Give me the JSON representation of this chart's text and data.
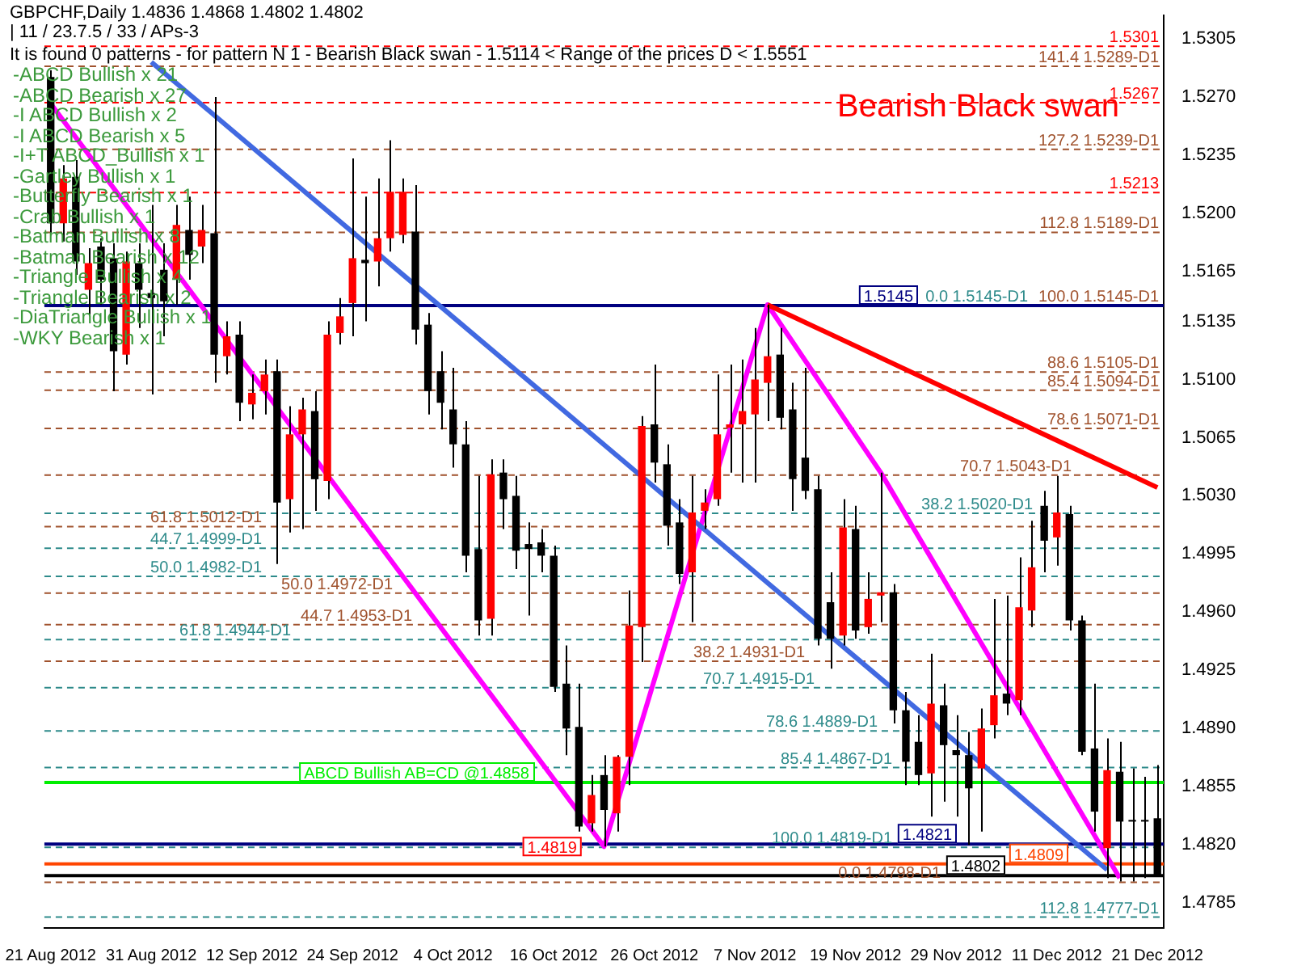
{
  "chart_data": {
    "type": "candlestick",
    "title": "GBPCHF,Daily  1.4836 1.4868 1.4802 1.4802",
    "subtitle": "| 11 / 23.7.5 / 33 / APs-3",
    "annotations": [
      "It is found 0 patterns  - for pattern N 1 - Bearish Black swan  - 1.5114 < Range of the prices D < 1.5551",
      "-ABCD Bullish x 21",
      "-ABCD Bearish x 27",
      "-I ABCD Bullish x 2",
      "-I ABCD Bearish x 5",
      "-I+T ABCD_Bullish x 1",
      "-Gartley Bullish x 1",
      "-Butterfly Bearish x 1",
      "-Crab Bullish x 1",
      "-Batman Bullish x 8",
      "-Batman Bearish x 12",
      "-Triangle Bullish x 4",
      "-Triangle Bearish x 2",
      "-DiaTriangle Bullish x 1",
      "-WKY Bearish x 1",
      {
        "text": "1.4819",
        "y": 1.4819
      },
      "Bearish Black swan"
    ],
    "categories": [
      "21 Aug 2012",
      null,
      null,
      null,
      null,
      null,
      null,
      null,
      "31 Aug 2012",
      null,
      null,
      null,
      null,
      null,
      null,
      null,
      "12 Sep 2012",
      null,
      null,
      null,
      null,
      null,
      null,
      null,
      "24 Sep 2012",
      null,
      null,
      null,
      null,
      null,
      null,
      null,
      "4 Oct 2012",
      null,
      null,
      null,
      null,
      null,
      null,
      null,
      "16 Oct 2012",
      null,
      null,
      null,
      null,
      null,
      null,
      null,
      "26 Oct 2012",
      null,
      null,
      null,
      null,
      null,
      null,
      null,
      "7 Nov 2012",
      null,
      null,
      null,
      null,
      null,
      null,
      null,
      "19 Nov 2012",
      null,
      null,
      null,
      null,
      null,
      null,
      null,
      "29 Nov 2012",
      null,
      null,
      null,
      null,
      null,
      null,
      null,
      "11 Dec 2012",
      null,
      null,
      null,
      null,
      null,
      null,
      null,
      "21 Dec 2012"
    ],
    "ohlc": [
      [
        1.5282,
        1.5286,
        1.5188,
        1.5194
      ],
      [
        1.5194,
        1.5229,
        1.5183,
        1.5221
      ],
      [
        1.5222,
        1.5232,
        1.5163,
        1.5171
      ],
      [
        1.5154,
        1.5179,
        1.5138,
        1.517
      ],
      [
        1.518,
        1.5185,
        1.5145,
        1.516
      ],
      [
        1.5173,
        1.5182,
        1.5093,
        1.5117
      ],
      [
        1.5115,
        1.5177,
        1.5109,
        1.5171
      ],
      [
        1.517,
        1.5182,
        1.5131,
        1.5154
      ],
      [
        1.5152,
        1.5205,
        1.5091,
        1.5149
      ],
      [
        1.5166,
        1.5182,
        1.5126,
        1.5147
      ],
      [
        1.516,
        1.5205,
        1.5145,
        1.5193
      ],
      [
        1.519,
        1.521,
        1.516,
        1.5175
      ],
      [
        1.518,
        1.5205,
        1.517,
        1.519
      ],
      [
        1.5188,
        1.527,
        1.5098,
        1.5115
      ],
      [
        1.5114,
        1.5135,
        1.5103,
        1.5126
      ],
      [
        1.5127,
        1.5135,
        1.5075,
        1.5086
      ],
      [
        1.5085,
        1.5103,
        1.5076,
        1.5092
      ],
      [
        1.5093,
        1.5112,
        1.5079,
        1.5103
      ],
      [
        1.5105,
        1.5112,
        1.4989,
        1.5026
      ],
      [
        1.5028,
        1.5084,
        1.5008,
        1.5067
      ],
      [
        1.5067,
        1.5089,
        1.501,
        1.5082
      ],
      [
        1.5081,
        1.5093,
        1.5021,
        1.504
      ],
      [
        1.5039,
        1.5135,
        1.5028,
        1.5127
      ],
      [
        1.5128,
        1.5149,
        1.5121,
        1.5138
      ],
      [
        1.5146,
        1.5233,
        1.5126,
        1.5173
      ],
      [
        1.5172,
        1.521,
        1.5135,
        1.517
      ],
      [
        1.5171,
        1.5221,
        1.5156,
        1.5185
      ],
      [
        1.5185,
        1.5244,
        1.5177,
        1.5213
      ],
      [
        1.5187,
        1.5221,
        1.5182,
        1.5213
      ],
      [
        1.5189,
        1.5217,
        1.5121,
        1.513
      ],
      [
        1.5133,
        1.514,
        1.5079,
        1.5093
      ],
      [
        1.5105,
        1.5117,
        1.507,
        1.5086
      ],
      [
        1.5082,
        1.5107,
        1.5047,
        1.5061
      ],
      [
        1.5061,
        1.5075,
        1.4984,
        1.4994
      ],
      [
        1.4998,
        1.5042,
        1.4946,
        1.4955
      ],
      [
        1.4956,
        1.5052,
        1.4946,
        1.5043
      ],
      [
        1.5044,
        1.5052,
        1.501,
        1.5028
      ],
      [
        1.503,
        1.5042,
        1.4986,
        1.4997
      ],
      [
        1.5001,
        1.5014,
        1.4958,
        1.4998
      ],
      [
        1.5002,
        1.501,
        1.4984,
        1.4994
      ],
      [
        1.4994,
        1.5,
        1.4912,
        1.4915
      ],
      [
        1.4917,
        1.494,
        1.4874,
        1.489
      ],
      [
        1.4891,
        1.4917,
        1.4828,
        1.4831
      ],
      [
        1.4833,
        1.4862,
        1.4828,
        1.485
      ],
      [
        1.4862,
        1.4874,
        1.4819,
        1.4841
      ],
      [
        1.4839,
        1.4874,
        1.4828,
        1.4873
      ],
      [
        1.4873,
        1.4973,
        1.4856,
        1.4952
      ],
      [
        1.4951,
        1.5078,
        1.493,
        1.5072
      ],
      [
        1.5073,
        1.5109,
        1.5038,
        1.505
      ],
      [
        1.5049,
        1.5061,
        1.5,
        1.5012
      ],
      [
        1.5014,
        1.5028,
        1.4977,
        1.4983
      ],
      [
        1.4984,
        1.5042,
        1.4954,
        1.502
      ],
      [
        1.5021,
        1.5034,
        1.501,
        1.5026
      ],
      [
        1.5028,
        1.5103,
        1.5024,
        1.5067
      ],
      [
        1.5071,
        1.5109,
        1.5044,
        1.5073
      ],
      [
        1.5073,
        1.5112,
        1.5038,
        1.5081
      ],
      [
        1.5079,
        1.5131,
        1.5038,
        1.51
      ],
      [
        1.5098,
        1.5145,
        1.5075,
        1.5114
      ],
      [
        1.5115,
        1.5131,
        1.507,
        1.5077
      ],
      [
        1.5082,
        1.5098,
        1.5021,
        1.504
      ],
      [
        1.5053,
        1.5107,
        1.5028,
        1.5033
      ],
      [
        1.5034,
        1.5042,
        1.494,
        1.4944
      ],
      [
        1.4966,
        1.4984,
        1.4926,
        1.4944
      ],
      [
        1.4946,
        1.5028,
        1.494,
        1.5011
      ],
      [
        1.501,
        1.5024,
        1.4944,
        1.4949
      ],
      [
        1.4951,
        1.4984,
        1.4947,
        1.4968
      ],
      [
        1.497,
        1.5044,
        1.4954,
        1.4972
      ],
      [
        1.4972,
        1.4977,
        1.4893,
        1.4901
      ],
      [
        1.4901,
        1.4912,
        1.4856,
        1.487
      ],
      [
        1.4882,
        1.4898,
        1.4856,
        1.4862
      ],
      [
        1.4863,
        1.4935,
        1.4837,
        1.4905
      ],
      [
        1.4904,
        1.4917,
        1.4846,
        1.488
      ],
      [
        1.4877,
        1.4898,
        1.4837,
        1.4874
      ],
      [
        1.4874,
        1.4888,
        1.482,
        1.4854
      ],
      [
        1.4866,
        1.4902,
        1.4828,
        1.489
      ],
      [
        1.4892,
        1.4968,
        1.4884,
        1.491
      ],
      [
        1.4911,
        1.497,
        1.4898,
        1.4905
      ],
      [
        1.4907,
        1.4993,
        1.4898,
        1.4963
      ],
      [
        1.4961,
        1.5015,
        1.4951,
        1.4987
      ],
      [
        1.5024,
        1.5033,
        1.4984,
        1.5003
      ],
      [
        1.5005,
        1.5042,
        1.4988,
        1.502
      ],
      [
        1.5019,
        1.5024,
        1.4949,
        1.4955
      ],
      [
        1.4955,
        1.4958,
        1.4874,
        1.4876
      ],
      [
        1.4878,
        1.4917,
        1.4828,
        1.484
      ],
      [
        1.4818,
        1.4884,
        1.48,
        1.4865
      ],
      [
        1.4864,
        1.4882,
        1.4798,
        1.4834
      ],
      [
        1.4835,
        1.4866,
        1.4798,
        1.4834
      ],
      [
        1.4835,
        1.4861,
        1.48,
        1.4834
      ],
      [
        1.4836,
        1.4868,
        1.4802,
        1.4802
      ]
    ],
    "colors": [
      "#000000",
      "#ff0000",
      "#000000",
      "#ff0000",
      "#000000",
      "#000000",
      "#ff0000",
      "#000000",
      "#000000",
      "#000000",
      "#ff0000",
      "#000000",
      "#ff0000",
      "#000000",
      "#ff0000",
      "#000000",
      "#ff0000",
      "#ff0000",
      "#000000",
      "#ff0000",
      "#ff0000",
      "#000000",
      "#ff0000",
      "#ff0000",
      "#ff0000",
      "#000000",
      "#ff0000",
      "#ff0000",
      "#ff0000",
      "#000000",
      "#000000",
      "#000000",
      "#000000",
      "#000000",
      "#000000",
      "#ff0000",
      "#000000",
      "#000000",
      "#000000",
      "#000000",
      "#000000",
      "#000000",
      "#000000",
      "#ff0000",
      "#000000",
      "#ff0000",
      "#ff0000",
      "#ff0000",
      "#000000",
      "#000000",
      "#000000",
      "#ff0000",
      "#ff0000",
      "#ff0000",
      "#ff0000",
      "#ff0000",
      "#ff0000",
      "#ff0000",
      "#000000",
      "#000000",
      "#000000",
      "#000000",
      "#000000",
      "#ff0000",
      "#000000",
      "#ff0000",
      "#ff0000",
      "#000000",
      "#000000",
      "#000000",
      "#ff0000",
      "#000000",
      "#000000",
      "#000000",
      "#ff0000",
      "#ff0000",
      "#000000",
      "#ff0000",
      "#ff0000",
      "#000000",
      "#ff0000",
      "#000000",
      "#000000",
      "#000000",
      "#ff0000",
      "#000000",
      "#000000",
      "#000000",
      "#000000"
    ],
    "series": [
      {
        "type": "line",
        "color": "#4169e1",
        "values": [
          null,
          null,
          null,
          null,
          null,
          null,
          null,
          null,
          1.5291,
          null,
          null,
          null,
          null,
          null,
          null,
          null,
          null,
          null,
          null,
          null,
          null,
          null,
          null,
          null,
          null,
          null,
          null,
          null,
          null,
          null,
          null,
          null,
          null,
          null,
          null,
          null,
          null,
          null,
          null,
          null,
          null,
          null,
          null,
          null,
          null,
          null,
          null,
          null,
          null,
          null,
          null,
          null,
          null,
          null,
          null,
          null,
          null,
          null,
          null,
          null,
          null,
          null,
          null,
          null,
          null,
          null,
          null,
          null,
          null,
          null,
          null,
          null,
          null,
          null,
          null,
          null,
          null,
          null,
          null,
          null,
          null,
          null,
          null,
          null,
          1.4805,
          null,
          null,
          null,
          null
        ]
      },
      {
        "type": "line",
        "color": "#ff0000",
        "values": [
          null,
          null,
          null,
          null,
          null,
          null,
          null,
          null,
          null,
          null,
          null,
          null,
          null,
          null,
          null,
          null,
          null,
          null,
          null,
          null,
          null,
          null,
          null,
          null,
          null,
          null,
          null,
          null,
          null,
          null,
          null,
          null,
          null,
          null,
          null,
          null,
          null,
          null,
          null,
          null,
          null,
          null,
          null,
          null,
          null,
          null,
          null,
          null,
          null,
          null,
          null,
          null,
          null,
          null,
          null,
          null,
          null,
          1.5145,
          null,
          null,
          null,
          null,
          null,
          null,
          null,
          null,
          null,
          null,
          null,
          null,
          null,
          null,
          null,
          null,
          null,
          null,
          null,
          null,
          null,
          null,
          null,
          null,
          null,
          null,
          null,
          null,
          null,
          null,
          1.5035
        ]
      },
      {
        "type": "line",
        "color": "#ff00ff",
        "values": [
          1.5266,
          null,
          null,
          null,
          null,
          null,
          null,
          null,
          null,
          null,
          null,
          null,
          null,
          null,
          null,
          null,
          null,
          null,
          null,
          null,
          null,
          null,
          null,
          null,
          null,
          null,
          null,
          null,
          null,
          null,
          null,
          null,
          null,
          null,
          null,
          null,
          null,
          null,
          null,
          null,
          null,
          null,
          null,
          null,
          1.4819,
          null,
          null,
          null,
          null,
          null,
          null,
          null,
          null,
          null,
          null,
          null,
          null,
          1.5145,
          null,
          null,
          null,
          null,
          null,
          null,
          null,
          null,
          1.5044,
          null,
          null,
          null,
          null,
          null,
          null,
          null,
          null,
          null,
          null,
          null,
          null,
          null,
          null,
          null,
          null,
          null,
          null,
          1.48,
          null,
          null,
          null
        ]
      }
    ],
    "ref_lines": [
      {
        "axis": "y",
        "value": 1.5301,
        "label": "1.5301",
        "color": "#ff0000",
        "line_style": "dashed"
      },
      {
        "axis": "y",
        "value": 1.5267,
        "label": "1.5267",
        "color": "#ff0000",
        "line_style": "dashed"
      },
      {
        "axis": "y",
        "value": 1.5213,
        "label": "1.5213",
        "color": "#ff0000",
        "line_style": "dashed"
      },
      {
        "axis": "y",
        "value": 1.5289,
        "label": "141.4 1.5289-D1",
        "color": "#a0522d",
        "line_style": "dashed"
      },
      {
        "axis": "y",
        "value": 1.5239,
        "label": "127.2 1.5239-D1",
        "color": "#a0522d",
        "line_style": "dashed"
      },
      {
        "axis": "y",
        "value": 1.5189,
        "label": "112.8 1.5189-D1",
        "color": "#a0522d",
        "line_style": "dashed"
      },
      {
        "axis": "y",
        "value": 1.5145,
        "label": "100.0 1.5145-D1",
        "color": "#a0522d",
        "line_style": "dashed"
      },
      {
        "axis": "y",
        "value": 1.5145,
        "label": "0.0 1.5145-D1",
        "color": "#2e8b8b",
        "line_style": "dashed"
      },
      {
        "axis": "y",
        "value": 1.5145,
        "label": "1.5145",
        "color": "#000080",
        "line_style": "solid"
      },
      {
        "axis": "y",
        "value": 1.5105,
        "label": "88.6 1.5105-D1",
        "color": "#a0522d",
        "line_style": "dashed"
      },
      {
        "axis": "y",
        "value": 1.5094,
        "label": "85.4 1.5094-D1",
        "color": "#a0522d",
        "line_style": "dashed"
      },
      {
        "axis": "y",
        "value": 1.5071,
        "label": "78.6 1.5071-D1",
        "color": "#a0522d",
        "line_style": "dashed"
      },
      {
        "axis": "y",
        "value": 1.5043,
        "label": "70.7 1.5043-D1",
        "color": "#a0522d",
        "line_style": "dashed"
      },
      {
        "axis": "y",
        "value": 1.502,
        "label": "38.2 1.5020-D1",
        "color": "#2e8b8b",
        "line_style": "dashed"
      },
      {
        "axis": "y",
        "value": 1.5012,
        "label": "61.8 1.5012-D1",
        "color": "#a0522d",
        "line_style": "dashed"
      },
      {
        "axis": "y",
        "value": 1.4999,
        "label": "44.7 1.4999-D1",
        "color": "#2e8b8b",
        "line_style": "dashed"
      },
      {
        "axis": "y",
        "value": 1.4982,
        "label": "50.0 1.4982-D1",
        "color": "#2e8b8b",
        "line_style": "dashed"
      },
      {
        "axis": "y",
        "value": 1.4972,
        "label": "50.0 1.4972-D1",
        "color": "#a0522d",
        "line_style": "dashed"
      },
      {
        "axis": "y",
        "value": 1.4953,
        "label": "44.7 1.4953-D1",
        "color": "#a0522d",
        "line_style": "dashed"
      },
      {
        "axis": "y",
        "value": 1.4944,
        "label": "61.8 1.4944-D1",
        "color": "#2e8b8b",
        "line_style": "dashed"
      },
      {
        "axis": "y",
        "value": 1.4931,
        "label": "38.2 1.4931-D1",
        "color": "#a0522d",
        "line_style": "dashed"
      },
      {
        "axis": "y",
        "value": 1.4915,
        "label": "70.7 1.4915-D1",
        "color": "#2e8b8b",
        "line_style": "dashed"
      },
      {
        "axis": "y",
        "value": 1.4889,
        "label": "78.6 1.4889-D1",
        "color": "#2e8b8b",
        "line_style": "dashed"
      },
      {
        "axis": "y",
        "value": 1.4867,
        "label": "85.4 1.4867-D1",
        "color": "#2e8b8b",
        "line_style": "dashed"
      },
      {
        "axis": "y",
        "value": 1.4858,
        "label": "ABCD Bullish AB=CD @1.4858",
        "color": "#00ee00",
        "line_style": "solid"
      },
      {
        "axis": "y",
        "value": 1.4821,
        "label": "1.4821",
        "color": "#000080",
        "line_style": "solid"
      },
      {
        "axis": "y",
        "value": 1.4819,
        "label": "100.0 1.4819-D1",
        "color": "#2e8b8b",
        "line_style": "dashed"
      },
      {
        "axis": "y",
        "value": 1.4809,
        "label": "1.4809",
        "color": "#ff4500",
        "line_style": "solid"
      },
      {
        "axis": "y",
        "value": 1.4802,
        "label": "1.4802",
        "color": "#000000",
        "line_style": "solid"
      },
      {
        "axis": "y",
        "value": 1.4798,
        "label": "0.0 1.4798-D1",
        "color": "#a0522d",
        "line_style": "dashed"
      },
      {
        "axis": "y",
        "value": 1.4777,
        "label": "112.8 1.4777-D1",
        "color": "#2e8b8b",
        "line_style": "dashed"
      }
    ],
    "ylim": [
      1.477,
      1.5319
    ],
    "yticks": [
      {
        "value": 1.5305,
        "label": "1.5305"
      },
      {
        "value": 1.527,
        "label": "1.5270"
      },
      {
        "value": 1.5235,
        "label": "1.5235"
      },
      {
        "value": 1.52,
        "label": "1.5200"
      },
      {
        "value": 1.5165,
        "label": "1.5165"
      },
      {
        "value": 1.5135,
        "label": "1.5135"
      },
      {
        "value": 1.51,
        "label": "1.5100"
      },
      {
        "value": 1.5065,
        "label": "1.5065"
      },
      {
        "value": 1.503,
        "label": "1.5030"
      },
      {
        "value": 1.4995,
        "label": "1.4995"
      },
      {
        "value": 1.496,
        "label": "1.4960"
      },
      {
        "value": 1.4925,
        "label": "1.4925"
      },
      {
        "value": 1.489,
        "label": "1.4890"
      },
      {
        "value": 1.4855,
        "label": "1.4855"
      },
      {
        "value": 1.482,
        "label": "1.4820"
      },
      {
        "value": 1.4785,
        "label": "1.4785"
      }
    ],
    "grid": false,
    "legend": false
  }
}
